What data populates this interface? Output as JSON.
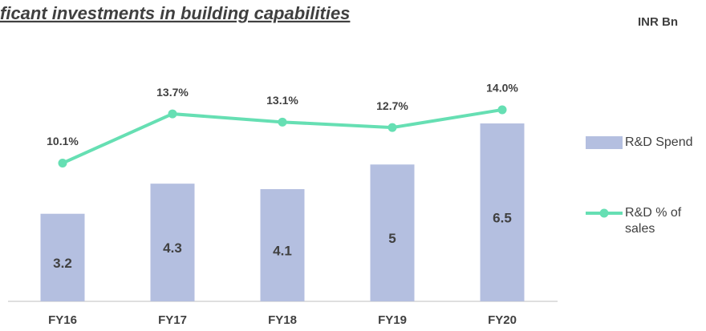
{
  "chart_data": {
    "type": "bar_line",
    "title": "ficant investments in building capabilities",
    "unit_label": "INR Bn",
    "categories": [
      "FY16",
      "FY17",
      "FY18",
      "FY19",
      "FY20"
    ],
    "series": [
      {
        "name": "R&D Spend",
        "type": "bar",
        "color": "#b4bfe0",
        "values": [
          3.2,
          4.3,
          4.1,
          5.0,
          6.5
        ]
      },
      {
        "name": "R&D % of sales",
        "type": "line",
        "axis": "y2",
        "color": "#66dfb3",
        "values": [
          10.1,
          13.7,
          13.1,
          12.7,
          14.0
        ],
        "value_labels": [
          "10.1%",
          "13.7%",
          "13.1%",
          "12.7%",
          "14.0%"
        ]
      }
    ],
    "ylim": [
      0,
      10
    ],
    "y2lim": [
      0,
      20
    ],
    "legend": "right"
  }
}
